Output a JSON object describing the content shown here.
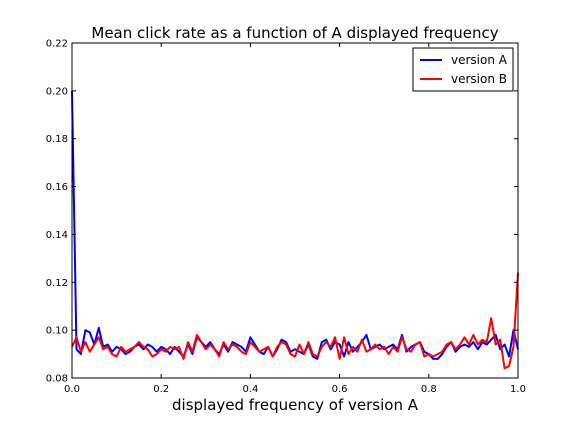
{
  "chart_data": {
    "type": "line",
    "title": "Mean click rate as a function of A displayed frequency",
    "xlabel": "displayed frequency of version A",
    "ylabel": "",
    "xlim": [
      0.0,
      1.0
    ],
    "ylim": [
      0.08,
      0.22
    ],
    "xticks": [
      "0.0",
      "0.2",
      "0.4",
      "0.6",
      "0.8",
      "1.0"
    ],
    "yticks": [
      "0.08",
      "0.10",
      "0.12",
      "0.14",
      "0.16",
      "0.18",
      "0.20",
      "0.22"
    ],
    "grid": false,
    "legend_position": "top-right",
    "x": [
      0.0,
      0.01,
      0.02,
      0.03,
      0.04,
      0.05,
      0.06,
      0.07,
      0.08,
      0.09,
      0.1,
      0.11,
      0.12,
      0.13,
      0.14,
      0.15,
      0.16,
      0.17,
      0.18,
      0.19,
      0.2,
      0.21,
      0.22,
      0.23,
      0.24,
      0.25,
      0.26,
      0.27,
      0.28,
      0.29,
      0.3,
      0.31,
      0.32,
      0.33,
      0.34,
      0.35,
      0.36,
      0.37,
      0.38,
      0.39,
      0.4,
      0.41,
      0.42,
      0.43,
      0.44,
      0.45,
      0.46,
      0.47,
      0.48,
      0.49,
      0.5,
      0.51,
      0.52,
      0.53,
      0.54,
      0.55,
      0.56,
      0.57,
      0.58,
      0.59,
      0.6,
      0.61,
      0.62,
      0.63,
      0.64,
      0.65,
      0.66,
      0.67,
      0.68,
      0.69,
      0.7,
      0.71,
      0.72,
      0.73,
      0.74,
      0.75,
      0.76,
      0.77,
      0.78,
      0.79,
      0.8,
      0.81,
      0.82,
      0.83,
      0.84,
      0.85,
      0.86,
      0.87,
      0.88,
      0.89,
      0.9,
      0.91,
      0.92,
      0.93,
      0.94,
      0.95,
      0.96,
      0.97,
      0.98,
      0.99,
      1.0
    ],
    "series": [
      {
        "name": "version A",
        "color": "#0000ff",
        "values": [
          0.2,
          0.092,
          0.09,
          0.1,
          0.099,
          0.094,
          0.101,
          0.093,
          0.094,
          0.091,
          0.093,
          0.092,
          0.09,
          0.091,
          0.093,
          0.094,
          0.092,
          0.094,
          0.093,
          0.091,
          0.093,
          0.092,
          0.09,
          0.093,
          0.091,
          0.089,
          0.094,
          0.09,
          0.097,
          0.095,
          0.093,
          0.095,
          0.092,
          0.09,
          0.094,
          0.091,
          0.095,
          0.094,
          0.093,
          0.091,
          0.097,
          0.094,
          0.091,
          0.09,
          0.093,
          0.089,
          0.092,
          0.096,
          0.095,
          0.091,
          0.092,
          0.091,
          0.09,
          0.094,
          0.089,
          0.088,
          0.095,
          0.096,
          0.092,
          0.095,
          0.094,
          0.089,
          0.095,
          0.091,
          0.093,
          0.095,
          0.098,
          0.092,
          0.093,
          0.094,
          0.092,
          0.093,
          0.094,
          0.092,
          0.098,
          0.091,
          0.093,
          0.094,
          0.095,
          0.091,
          0.09,
          0.088,
          0.088,
          0.09,
          0.093,
          0.095,
          0.091,
          0.093,
          0.094,
          0.093,
          0.095,
          0.092,
          0.095,
          0.094,
          0.096,
          0.098,
          0.092,
          0.094,
          0.089,
          0.1,
          0.092
        ]
      },
      {
        "name": "version B",
        "color": "#ff0000",
        "values": [
          0.093,
          0.097,
          0.091,
          0.095,
          0.091,
          0.094,
          0.097,
          0.092,
          0.093,
          0.09,
          0.089,
          0.093,
          0.091,
          0.092,
          0.093,
          0.095,
          0.093,
          0.092,
          0.089,
          0.09,
          0.092,
          0.091,
          0.093,
          0.092,
          0.093,
          0.088,
          0.095,
          0.091,
          0.098,
          0.095,
          0.092,
          0.094,
          0.092,
          0.089,
          0.095,
          0.092,
          0.094,
          0.093,
          0.091,
          0.09,
          0.095,
          0.093,
          0.091,
          0.092,
          0.093,
          0.089,
          0.093,
          0.095,
          0.094,
          0.09,
          0.089,
          0.094,
          0.09,
          0.095,
          0.09,
          0.089,
          0.093,
          0.095,
          0.093,
          0.097,
          0.088,
          0.097,
          0.09,
          0.093,
          0.091,
          0.096,
          0.091,
          0.092,
          0.094,
          0.092,
          0.093,
          0.09,
          0.093,
          0.091,
          0.097,
          0.092,
          0.091,
          0.094,
          0.095,
          0.089,
          0.09,
          0.089,
          0.09,
          0.091,
          0.094,
          0.095,
          0.092,
          0.094,
          0.097,
          0.094,
          0.098,
          0.094,
          0.096,
          0.095,
          0.105,
          0.094,
          0.096,
          0.084,
          0.085,
          0.093,
          0.124
        ]
      }
    ]
  }
}
